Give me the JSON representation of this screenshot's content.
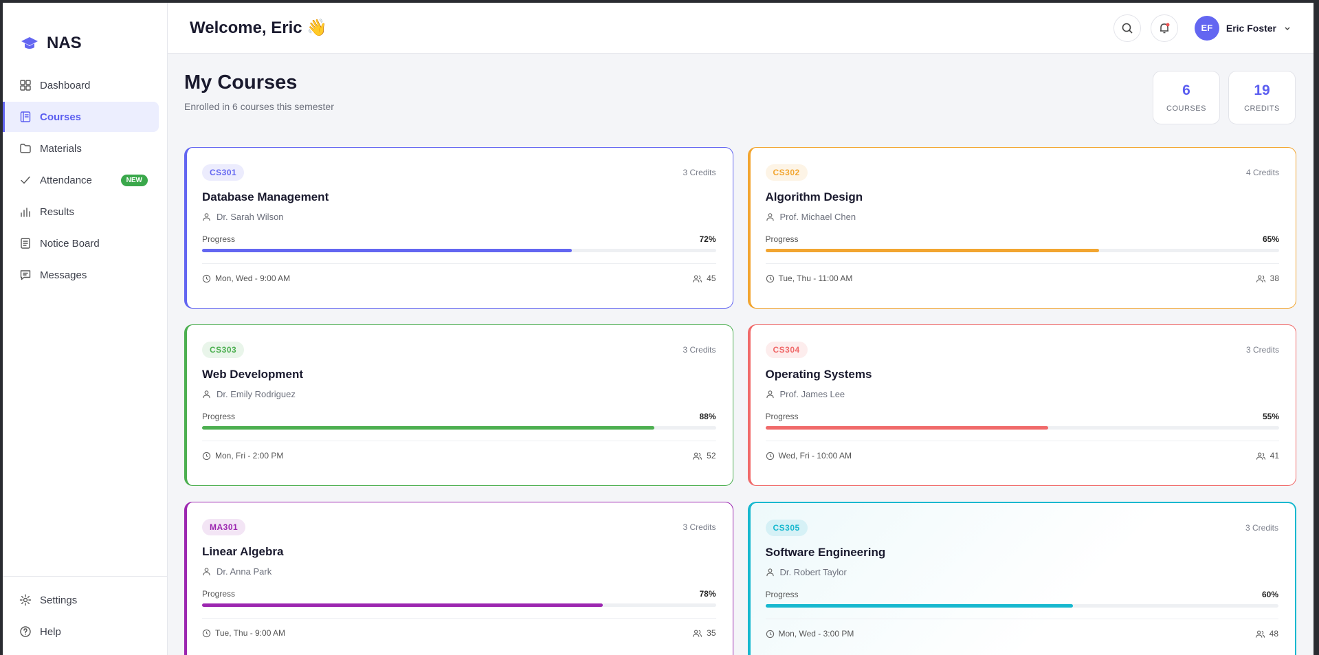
{
  "brand": "NAS",
  "nav": [
    {
      "label": "Dashboard",
      "active": false
    },
    {
      "label": "Courses",
      "active": true
    },
    {
      "label": "Materials",
      "active": false
    },
    {
      "label": "Attendance",
      "active": false,
      "badge": "NEW"
    },
    {
      "label": "Results",
      "active": false
    },
    {
      "label": "Notice Board",
      "active": false
    },
    {
      "label": "Messages",
      "active": false
    }
  ],
  "footer_nav": [
    {
      "label": "Settings"
    },
    {
      "label": "Help"
    }
  ],
  "header": {
    "greeting": "Welcome, Eric 👋",
    "user_initials": "EF",
    "user_name": "Eric Foster"
  },
  "page": {
    "title": "My Courses",
    "subtitle": "Enrolled in 6 courses this semester"
  },
  "stats": [
    {
      "value": 6,
      "label": "COURSES"
    },
    {
      "value": 19,
      "label": "CREDITS"
    }
  ],
  "courses": [
    {
      "code": "CS301",
      "credits": "3 Credits",
      "title": "Database Management",
      "instructor": "Dr. Sarah Wilson",
      "progress_label": "Progress",
      "progress": {
        "value": 72,
        "label": "72%"
      },
      "schedule": "Mon, Wed - 9:00 AM",
      "students": 45,
      "color": "#6366f1"
    },
    {
      "code": "CS302",
      "credits": "4 Credits",
      "title": "Algorithm Design",
      "instructor": "Prof. Michael Chen",
      "progress_label": "Progress",
      "progress": {
        "value": 65,
        "label": "65%"
      },
      "schedule": "Tue, Thu - 11:00 AM",
      "students": 38,
      "color": "#f2a530"
    },
    {
      "code": "CS303",
      "credits": "3 Credits",
      "title": "Web Development",
      "instructor": "Dr. Emily Rodriguez",
      "progress_label": "Progress",
      "progress": {
        "value": 88,
        "label": "88%"
      },
      "schedule": "Mon, Fri - 2:00 PM",
      "students": 52,
      "color": "#4caf50"
    },
    {
      "code": "CS304",
      "credits": "3 Credits",
      "title": "Operating Systems",
      "instructor": "Prof. James Lee",
      "progress_label": "Progress",
      "progress": {
        "value": 55,
        "label": "55%"
      },
      "schedule": "Wed, Fri - 10:00 AM",
      "students": 41,
      "color": "#f06a6a"
    },
    {
      "code": "MA301",
      "credits": "3 Credits",
      "title": "Linear Algebra",
      "instructor": "Dr. Anna Park",
      "progress_label": "Progress",
      "progress": {
        "value": 78,
        "label": "78%"
      },
      "schedule": "Tue, Thu - 9:00 AM",
      "students": 35,
      "color": "#9c27b0"
    },
    {
      "code": "CS305",
      "credits": "3 Credits",
      "title": "Software Engineering",
      "instructor": "Dr. Robert Taylor",
      "progress_label": "Progress",
      "progress": {
        "value": 60,
        "label": "60%"
      },
      "schedule": "Mon, Wed - 3:00 PM",
      "students": 48,
      "color": "#17b8cf",
      "highlighted": true
    }
  ]
}
